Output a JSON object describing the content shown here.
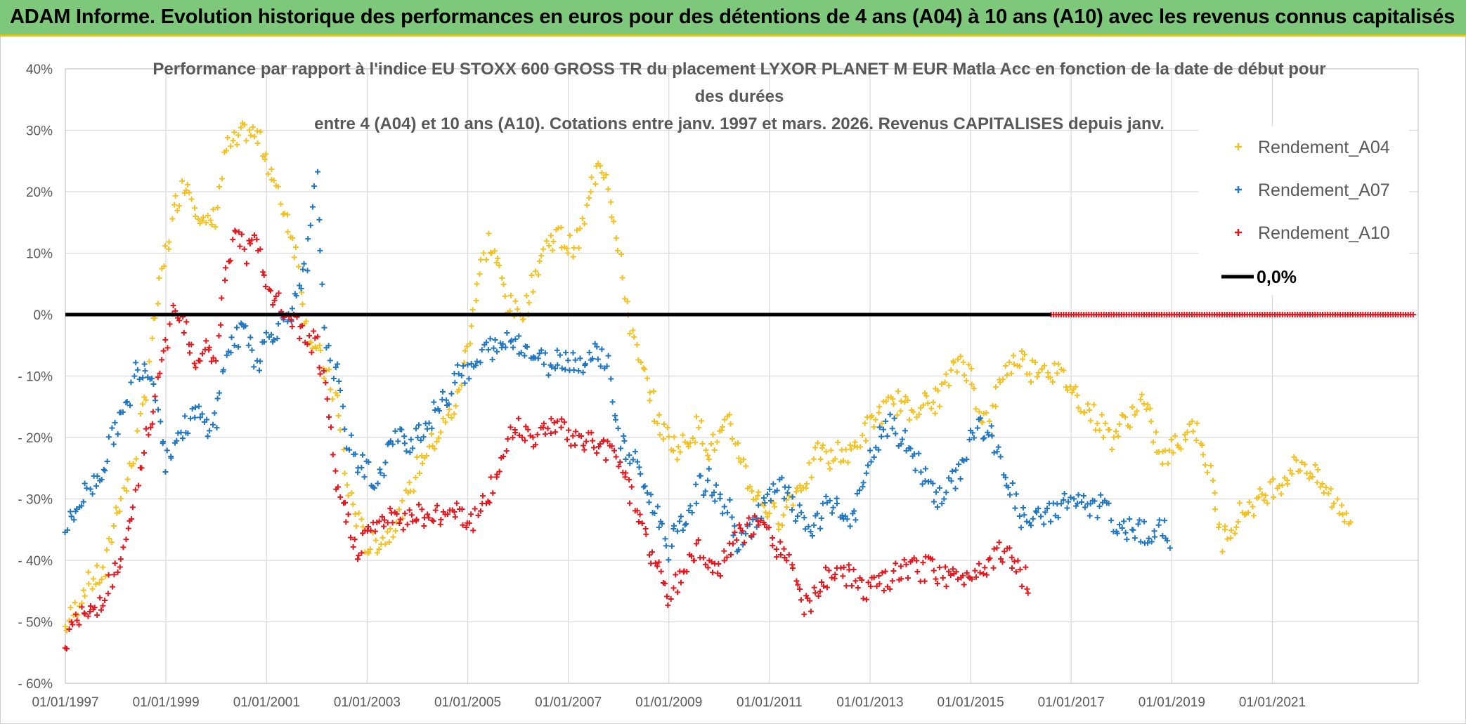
{
  "banner": {
    "title": "ADAM Informe. Evolution historique des performances en euros pour des détentions de 4 ans (A04) à 10 ans (A10) avec les revenus connus capitalisés"
  },
  "colors": {
    "banner_bg": "#7dc87a",
    "banner_border": "#e8c200",
    "A04": "#f5c11e",
    "A07": "#1f77c4",
    "A10": "#e8141c",
    "zero": "#000000",
    "grid": "#d9d9d9"
  },
  "chart_data": {
    "type": "scatter",
    "title_lines": [
      "Performance par rapport à l'indice EU STOXX 600 GROSS TR  du placement LYXOR PLANET M EUR Matla Acc en fonction de la date de début pour",
      "des durées",
      "entre 4 (A04) et 10 ans (A10). Cotations entre janv. 1997 et mars. 2026. Revenus CAPITALISES depuis janv."
    ],
    "x_unit": "year",
    "xlim": [
      1997.0,
      2023.9
    ],
    "x_ticks": [
      {
        "value": 1997,
        "label": "01/01/1997"
      },
      {
        "value": 1999,
        "label": "01/01/1999"
      },
      {
        "value": 2001,
        "label": "01/01/2001"
      },
      {
        "value": 2003,
        "label": "01/01/2003"
      },
      {
        "value": 2005,
        "label": "01/01/2005"
      },
      {
        "value": 2007,
        "label": "01/01/2007"
      },
      {
        "value": 2009,
        "label": "01/01/2009"
      },
      {
        "value": 2011,
        "label": "01/01/2011"
      },
      {
        "value": 2013,
        "label": "01/01/2013"
      },
      {
        "value": 2015,
        "label": "01/01/2015"
      },
      {
        "value": 2017,
        "label": "01/01/2017"
      },
      {
        "value": 2019,
        "label": "01/01/2019"
      },
      {
        "value": 2021,
        "label": "01/01/2021"
      }
    ],
    "ylim": [
      -60,
      40
    ],
    "y_ticks": [
      {
        "value": 40,
        "label": "40%"
      },
      {
        "value": 30,
        "label": "30%"
      },
      {
        "value": 20,
        "label": "20%"
      },
      {
        "value": 10,
        "label": "10%"
      },
      {
        "value": 0,
        "label": "0%"
      },
      {
        "value": -10,
        "label": "- 10%"
      },
      {
        "value": -20,
        "label": "- 20%"
      },
      {
        "value": -30,
        "label": "- 30%"
      },
      {
        "value": -40,
        "label": "- 40%"
      },
      {
        "value": -50,
        "label": "- 50%"
      },
      {
        "value": -60,
        "label": "- 60%"
      }
    ],
    "legend": {
      "placement": "top-right",
      "entries": [
        {
          "key": "A04",
          "label": "Rendement_A04",
          "marker": "plus"
        },
        {
          "key": "A07",
          "label": "Rendement_A07",
          "marker": "plus"
        },
        {
          "key": "A10",
          "label": "Rendement_A10",
          "marker": "plus"
        },
        {
          "key": "zero",
          "label": "0,0%",
          "marker": "line"
        }
      ]
    },
    "series": [
      {
        "name": "Rendement_A04",
        "key": "A04",
        "x": [
          1997.0,
          1997.2,
          1997.4,
          1997.6,
          1997.8,
          1998.0,
          1998.2,
          1998.4,
          1998.6,
          1998.8,
          1999.0,
          1999.2,
          1999.4,
          1999.6,
          1999.8,
          2000.0,
          2000.2,
          2000.4,
          2000.6,
          2000.8,
          2001.0,
          2001.2,
          2001.4,
          2001.6,
          2001.8,
          2002.0,
          2002.2,
          2002.4,
          2002.6,
          2002.8,
          2003.0,
          2003.2,
          2003.4,
          2003.6,
          2003.8,
          2004.0,
          2004.2,
          2004.4,
          2004.6,
          2004.8,
          2005.0,
          2005.2,
          2005.4,
          2005.6,
          2005.8,
          2006.0,
          2006.2,
          2006.4,
          2006.6,
          2006.8,
          2007.0,
          2007.2,
          2007.4,
          2007.6,
          2007.8,
          2008.0,
          2008.2,
          2008.4,
          2008.6,
          2008.8,
          2009.0,
          2009.2,
          2009.4,
          2009.6,
          2009.8,
          2010.0,
          2010.2,
          2010.4,
          2010.6,
          2010.8,
          2011.0,
          2011.2,
          2011.4,
          2011.6,
          2011.8,
          2012.0,
          2012.2,
          2012.4,
          2012.6,
          2012.8,
          2013.0,
          2013.2,
          2013.4,
          2013.6,
          2013.8,
          2014.0,
          2014.2,
          2014.4,
          2014.6,
          2014.8,
          2015.0,
          2015.2,
          2015.4,
          2015.6,
          2015.8,
          2016.0,
          2016.2,
          2016.4,
          2016.6,
          2016.8,
          2017.0,
          2017.2,
          2017.4,
          2017.6,
          2017.8,
          2018.0,
          2018.2,
          2018.4,
          2018.6,
          2018.8,
          2019.0,
          2019.2,
          2019.4,
          2019.6,
          2019.8,
          2020.0,
          2020.2,
          2020.4,
          2020.6,
          2020.8,
          2021.0,
          2021.2,
          2021.4,
          2021.6,
          2021.8,
          2022.0,
          2022.2,
          2022.4,
          2022.6
        ],
        "y": [
          -51,
          -48,
          -44,
          -43,
          -42,
          -32,
          -28,
          -22,
          -12,
          0,
          10,
          18,
          22,
          18,
          14,
          16,
          27,
          28,
          30,
          29,
          26,
          20,
          16,
          10,
          -2,
          -6,
          -10,
          -14,
          -28,
          -33,
          -38,
          -37,
          -36,
          -33,
          -30,
          -25,
          -22,
          -20,
          -17,
          -14,
          -5,
          5,
          12,
          8,
          2,
          0,
          2,
          8,
          12,
          13,
          11,
          12,
          18,
          26,
          22,
          10,
          0,
          -8,
          -12,
          -18,
          -20,
          -22,
          -20,
          -18,
          -22,
          -20,
          -18,
          -22,
          -28,
          -30,
          -32,
          -33,
          -30,
          -28,
          -26,
          -22,
          -24,
          -22,
          -23,
          -20,
          -18,
          -16,
          -15,
          -14,
          -16,
          -14,
          -15,
          -13,
          -10,
          -7,
          -10,
          -16,
          -18,
          -10,
          -8,
          -7,
          -9,
          -8,
          -9,
          -10,
          -12,
          -14,
          -16,
          -18,
          -20,
          -18,
          -16,
          -14,
          -18,
          -24,
          -22,
          -20,
          -18,
          -20,
          -28,
          -37,
          -34,
          -32,
          -31,
          -30,
          -28,
          -27,
          -25,
          -24,
          -26,
          -28,
          -30,
          -32,
          -33
        ]
      },
      {
        "name": "Rendement_A07",
        "key": "A07",
        "x": [
          1997.0,
          1997.2,
          1997.4,
          1997.6,
          1997.8,
          1998.0,
          1998.2,
          1998.4,
          1998.6,
          1998.8,
          1999.0,
          1999.2,
          1999.4,
          1999.6,
          1999.8,
          2000.0,
          2000.2,
          2000.4,
          2000.6,
          2000.8,
          2001.0,
          2001.2,
          2001.4,
          2001.6,
          2001.8,
          2002.0,
          2002.2,
          2002.4,
          2002.6,
          2002.8,
          2003.0,
          2003.2,
          2003.4,
          2003.6,
          2003.8,
          2004.0,
          2004.2,
          2004.4,
          2004.6,
          2004.8,
          2005.0,
          2005.2,
          2005.4,
          2005.6,
          2005.8,
          2006.0,
          2006.2,
          2006.4,
          2006.6,
          2006.8,
          2007.0,
          2007.2,
          2007.4,
          2007.6,
          2007.8,
          2008.0,
          2008.2,
          2008.4,
          2008.6,
          2008.8,
          2009.0,
          2009.2,
          2009.4,
          2009.6,
          2009.8,
          2010.0,
          2010.2,
          2010.4,
          2010.6,
          2010.8,
          2011.0,
          2011.2,
          2011.4,
          2011.6,
          2011.8,
          2012.0,
          2012.2,
          2012.4,
          2012.6,
          2012.8,
          2013.0,
          2013.2,
          2013.4,
          2013.6,
          2013.8,
          2014.0,
          2014.2,
          2014.4,
          2014.6,
          2014.8,
          2015.0,
          2015.2,
          2015.4,
          2015.6,
          2015.8,
          2016.0,
          2016.2,
          2016.4,
          2016.6,
          2016.8,
          2017.0,
          2017.2,
          2017.4,
          2017.6,
          2017.8,
          2018.0,
          2018.2,
          2018.4,
          2018.6,
          2018.8,
          2019.0
        ],
        "y": [
          -35,
          -32,
          -29,
          -27,
          -24,
          -18,
          -16,
          -9,
          -8,
          -12,
          -24,
          -20,
          -18,
          -16,
          -18,
          -17,
          -6,
          -4,
          -2,
          -8,
          -4,
          -2,
          0,
          2,
          8,
          22,
          -6,
          -10,
          -20,
          -24,
          -25,
          -28,
          -22,
          -20,
          -21,
          -19,
          -18,
          -15,
          -14,
          -8,
          -10,
          -8,
          -5,
          -6,
          -4,
          -4,
          -6,
          -7,
          -8,
          -7,
          -7,
          -8,
          -7,
          -6,
          -8,
          -20,
          -23,
          -25,
          -30,
          -33,
          -38,
          -35,
          -32,
          -28,
          -27,
          -30,
          -32,
          -38,
          -35,
          -32,
          -30,
          -28,
          -30,
          -33,
          -35,
          -34,
          -30,
          -32,
          -34,
          -30,
          -24,
          -20,
          -18,
          -20,
          -22,
          -25,
          -28,
          -30,
          -28,
          -25,
          -20,
          -18,
          -20,
          -24,
          -28,
          -33,
          -34,
          -33,
          -32,
          -31,
          -30,
          -31,
          -32,
          -31,
          -33,
          -36,
          -34,
          -35,
          -36,
          -35,
          -37
        ]
      },
      {
        "name": "Rendement_A10",
        "key": "A10",
        "x": [
          1997.0,
          1997.2,
          1997.4,
          1997.6,
          1997.8,
          1998.0,
          1998.2,
          1998.4,
          1998.6,
          1998.8,
          1999.0,
          1999.2,
          1999.4,
          1999.6,
          1999.8,
          2000.0,
          2000.2,
          2000.4,
          2000.6,
          2000.8,
          2001.0,
          2001.2,
          2001.4,
          2001.6,
          2001.8,
          2002.0,
          2002.2,
          2002.4,
          2002.6,
          2002.8,
          2003.0,
          2003.2,
          2003.4,
          2003.6,
          2003.8,
          2004.0,
          2004.2,
          2004.4,
          2004.6,
          2004.8,
          2005.0,
          2005.2,
          2005.4,
          2005.6,
          2005.8,
          2006.0,
          2006.2,
          2006.4,
          2006.6,
          2006.8,
          2007.0,
          2007.2,
          2007.4,
          2007.6,
          2007.8,
          2008.0,
          2008.2,
          2008.4,
          2008.6,
          2008.8,
          2009.0,
          2009.2,
          2009.4,
          2009.6,
          2009.8,
          2010.0,
          2010.2,
          2010.4,
          2010.6,
          2010.8,
          2011.0,
          2011.2,
          2011.4,
          2011.6,
          2011.8,
          2012.0,
          2012.2,
          2012.4,
          2012.6,
          2012.8,
          2013.0,
          2013.2,
          2013.4,
          2013.6,
          2013.8,
          2014.0,
          2014.2,
          2014.4,
          2014.6,
          2014.8,
          2015.0,
          2015.2,
          2015.4,
          2015.6,
          2015.8,
          2016.0,
          2016.2
        ],
        "y": [
          -53,
          -50,
          -49,
          -48,
          -45,
          -42,
          -38,
          -30,
          -20,
          -14,
          -5,
          2,
          -2,
          -8,
          -4,
          -8,
          8,
          14,
          10,
          12,
          4,
          2,
          0,
          -2,
          -4,
          -5,
          -15,
          -28,
          -33,
          -38,
          -36,
          -34,
          -33,
          -34,
          -33,
          -32,
          -33,
          -33,
          -32,
          -31,
          -34,
          -33,
          -30,
          -26,
          -20,
          -18,
          -19,
          -20,
          -18,
          -17,
          -20,
          -21,
          -20,
          -22,
          -22,
          -23,
          -28,
          -32,
          -38,
          -42,
          -46,
          -43,
          -40,
          -38,
          -40,
          -42,
          -38,
          -36,
          -35,
          -34,
          -36,
          -38,
          -40,
          -46,
          -48,
          -44,
          -42,
          -43,
          -42,
          -44,
          -45,
          -44,
          -43,
          -42,
          -41,
          -42,
          -41,
          -42,
          -43,
          -43,
          -42,
          -41,
          -40,
          -38,
          -40,
          -42,
          -44
        ]
      },
      {
        "name": "Rendement_A10 (flat)",
        "key": "A10",
        "x_range": [
          2016.6,
          2023.8
        ],
        "y_const": 0
      }
    ],
    "reference_line": {
      "label": "0,0%",
      "y": 0
    }
  }
}
